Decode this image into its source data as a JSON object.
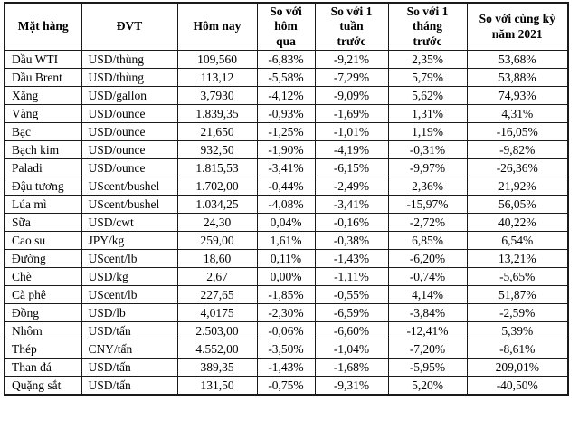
{
  "colors": {
    "background": "#ffffff",
    "border": "#1a1a1a",
    "text": "#000000"
  },
  "table": {
    "columns": [
      {
        "label": "Mặt hàng"
      },
      {
        "label": "ĐVT"
      },
      {
        "label": "Hôm nay"
      },
      {
        "label": "So với\nhôm\nqua"
      },
      {
        "label": "So với 1\ntuần\ntrước"
      },
      {
        "label": "So với 1\ntháng\ntrước"
      },
      {
        "label": "So với cùng kỳ\nnăm 2021"
      }
    ],
    "rows": [
      [
        "Dầu WTI",
        "USD/thùng",
        "109,560",
        "-6,83%",
        "-9,21%",
        "2,35%",
        "53,68%"
      ],
      [
        "Dầu Brent",
        "USD/thùng",
        "113,12",
        "-5,58%",
        "-7,29%",
        "5,79%",
        "53,88%"
      ],
      [
        "Xăng",
        "USD/gallon",
        "3,7930",
        "-4,12%",
        "-9,09%",
        "5,62%",
        "74,93%"
      ],
      [
        "Vàng",
        "USD/ounce",
        "1.839,35",
        "-0,93%",
        "-1,69%",
        "1,31%",
        "4,31%"
      ],
      [
        "Bạc",
        "USD/ounce",
        "21,650",
        "-1,25%",
        "-1,01%",
        "1,19%",
        "-16,05%"
      ],
      [
        "Bạch kim",
        "USD/ounce",
        "932,50",
        "-1,90%",
        "-4,19%",
        "-0,31%",
        "-9,82%"
      ],
      [
        "Paladi",
        "USD/ounce",
        "1.815,53",
        "-3,41%",
        "-6,15%",
        "-9,97%",
        "-26,36%"
      ],
      [
        "Đậu tương",
        "UScent/bushel",
        "1.702,00",
        "-0,44%",
        "-2,49%",
        "2,36%",
        "21,92%"
      ],
      [
        "Lúa mì",
        "UScent/bushel",
        "1.034,25",
        "-4,08%",
        "-3,41%",
        "-15,97%",
        "56,05%"
      ],
      [
        "Sữa",
        "USD/cwt",
        "24,30",
        "0,04%",
        "-0,16%",
        "-2,72%",
        "40,22%"
      ],
      [
        "Cao su",
        "JPY/kg",
        "259,00",
        "1,61%",
        "-0,38%",
        "6,85%",
        "6,54%"
      ],
      [
        "Đường",
        "UScent/lb",
        "18,60",
        "0,11%",
        "-1,43%",
        "-6,20%",
        "13,21%"
      ],
      [
        "Chè",
        "USD/kg",
        "2,67",
        "0,00%",
        "-1,11%",
        "-0,74%",
        "-5,65%"
      ],
      [
        "Cà phê",
        "UScent/lb",
        "227,65",
        "-1,85%",
        "-0,55%",
        "4,14%",
        "51,87%"
      ],
      [
        "Đồng",
        "USD/lb",
        "4,0175",
        "-2,30%",
        "-6,59%",
        "-3,84%",
        "-2,59%"
      ],
      [
        "Nhôm",
        "USD/tấn",
        "2.503,00",
        "-0,06%",
        "-6,60%",
        "-12,41%",
        "5,39%"
      ],
      [
        "Thép",
        "CNY/tấn",
        "4.552,00",
        "-3,50%",
        "-1,04%",
        "-7,20%",
        "-8,61%"
      ],
      [
        "Than đá",
        "USD/tấn",
        "389,35",
        "-1,43%",
        "-1,68%",
        "-5,95%",
        "209,01%"
      ],
      [
        "Quặng sắt",
        "USD/tấn",
        "131,50",
        "-0,75%",
        "-9,31%",
        "5,20%",
        "-40,50%"
      ]
    ]
  }
}
